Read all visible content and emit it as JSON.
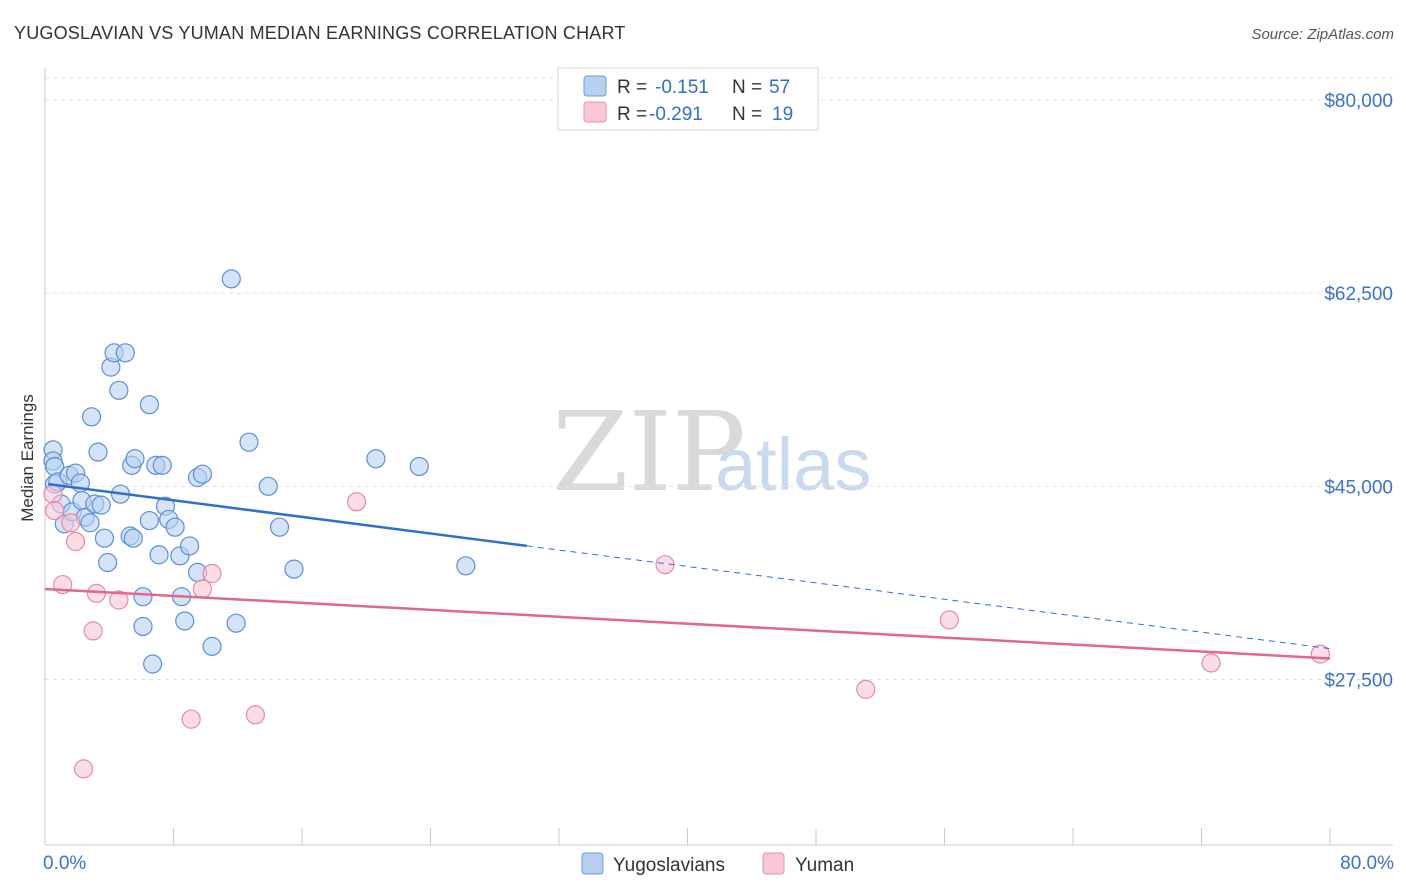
{
  "chart_data": {
    "type": "scatter",
    "title": "YUGOSLAVIAN VS YUMAN MEDIAN EARNINGS CORRELATION CHART",
    "source": "Source: ZipAtlas.com",
    "xlabel": "",
    "ylabel": "Median Earnings",
    "xlim": [
      0,
      80
    ],
    "ylim": [
      12500,
      82000
    ],
    "x_tick_labels": [
      "0.0%",
      "80.0%"
    ],
    "y_ticks": [
      {
        "value": 80000,
        "label": "$80,000"
      },
      {
        "value": 62500,
        "label": "$62,500"
      },
      {
        "value": 45000,
        "label": "$45,000"
      },
      {
        "value": 27500,
        "label": "$27,500"
      }
    ],
    "watermark": {
      "zip": "ZIP",
      "atlas": "atlas"
    },
    "legend": [
      {
        "swatch": "blue",
        "r_label": "R =",
        "r_value": "-0.151",
        "n_label": "N =",
        "n_value": "57"
      },
      {
        "swatch": "pink",
        "r_label": "R =",
        "r_value": "-0.291",
        "n_label": "N =",
        "n_value": "19"
      }
    ],
    "series": [
      {
        "name": "Yugoslavians",
        "color": "#5b8fd9",
        "fill": "#b7d0f2",
        "trend": {
          "x0": 0.2,
          "y0": 45200,
          "x1": 30,
          "y1": 39600,
          "dash_x1": 80,
          "dash_y1": 30300
        },
        "points": [
          {
            "x": 0.5,
            "y": 48300
          },
          {
            "x": 0.5,
            "y": 47300
          },
          {
            "x": 0.6,
            "y": 46800
          },
          {
            "x": 0.6,
            "y": 45200
          },
          {
            "x": 0.8,
            "y": 45400
          },
          {
            "x": 1.0,
            "y": 43400
          },
          {
            "x": 1.2,
            "y": 41600
          },
          {
            "x": 1.5,
            "y": 46000
          },
          {
            "x": 1.7,
            "y": 42700
          },
          {
            "x": 1.9,
            "y": 46200
          },
          {
            "x": 2.2,
            "y": 45300
          },
          {
            "x": 2.3,
            "y": 43700
          },
          {
            "x": 2.5,
            "y": 42200
          },
          {
            "x": 2.8,
            "y": 41700
          },
          {
            "x": 2.9,
            "y": 51300
          },
          {
            "x": 3.1,
            "y": 43400
          },
          {
            "x": 3.3,
            "y": 48100
          },
          {
            "x": 3.5,
            "y": 43300
          },
          {
            "x": 3.7,
            "y": 40300
          },
          {
            "x": 3.9,
            "y": 38100
          },
          {
            "x": 4.1,
            "y": 55800
          },
          {
            "x": 4.3,
            "y": 57100
          },
          {
            "x": 4.6,
            "y": 53700
          },
          {
            "x": 4.7,
            "y": 44300
          },
          {
            "x": 5.0,
            "y": 57100
          },
          {
            "x": 5.3,
            "y": 40500
          },
          {
            "x": 5.5,
            "y": 40300
          },
          {
            "x": 5.4,
            "y": 46900
          },
          {
            "x": 5.6,
            "y": 47500
          },
          {
            "x": 6.1,
            "y": 35000
          },
          {
            "x": 6.1,
            "y": 32300
          },
          {
            "x": 6.5,
            "y": 52400
          },
          {
            "x": 6.5,
            "y": 41900
          },
          {
            "x": 6.7,
            "y": 28900
          },
          {
            "x": 6.9,
            "y": 46900
          },
          {
            "x": 7.1,
            "y": 38800
          },
          {
            "x": 7.3,
            "y": 46900
          },
          {
            "x": 7.5,
            "y": 43200
          },
          {
            "x": 7.7,
            "y": 42000
          },
          {
            "x": 8.1,
            "y": 41300
          },
          {
            "x": 8.4,
            "y": 38700
          },
          {
            "x": 8.5,
            "y": 35000
          },
          {
            "x": 8.7,
            "y": 32800
          },
          {
            "x": 9.0,
            "y": 39600
          },
          {
            "x": 9.5,
            "y": 37200
          },
          {
            "x": 9.5,
            "y": 45800
          },
          {
            "x": 9.8,
            "y": 46100
          },
          {
            "x": 10.4,
            "y": 30500
          },
          {
            "x": 11.6,
            "y": 63800
          },
          {
            "x": 11.9,
            "y": 32600
          },
          {
            "x": 12.7,
            "y": 49000
          },
          {
            "x": 13.9,
            "y": 45000
          },
          {
            "x": 14.6,
            "y": 41300
          },
          {
            "x": 15.5,
            "y": 37500
          },
          {
            "x": 20.6,
            "y": 47500
          },
          {
            "x": 23.3,
            "y": 46800
          },
          {
            "x": 26.2,
            "y": 37800
          }
        ]
      },
      {
        "name": "Yuman",
        "color": "#e58aa8",
        "fill": "#f8c6d6",
        "trend": {
          "x0": 0,
          "y0": 35700,
          "x1": 80,
          "y1": 29400
        },
        "points": [
          {
            "x": 0.5,
            "y": 44300
          },
          {
            "x": 0.6,
            "y": 42800
          },
          {
            "x": 1.1,
            "y": 36100
          },
          {
            "x": 1.6,
            "y": 41700
          },
          {
            "x": 1.9,
            "y": 40000
          },
          {
            "x": 2.4,
            "y": 19400
          },
          {
            "x": 3.0,
            "y": 31900
          },
          {
            "x": 3.2,
            "y": 35300
          },
          {
            "x": 4.6,
            "y": 34700
          },
          {
            "x": 9.1,
            "y": 23900
          },
          {
            "x": 9.8,
            "y": 35700
          },
          {
            "x": 10.4,
            "y": 37100
          },
          {
            "x": 13.1,
            "y": 24300
          },
          {
            "x": 19.4,
            "y": 43600
          },
          {
            "x": 38.6,
            "y": 37900
          },
          {
            "x": 51.1,
            "y": 26600
          },
          {
            "x": 56.3,
            "y": 32900
          },
          {
            "x": 72.6,
            "y": 29000
          },
          {
            "x": 79.4,
            "y": 29800
          }
        ]
      }
    ]
  }
}
